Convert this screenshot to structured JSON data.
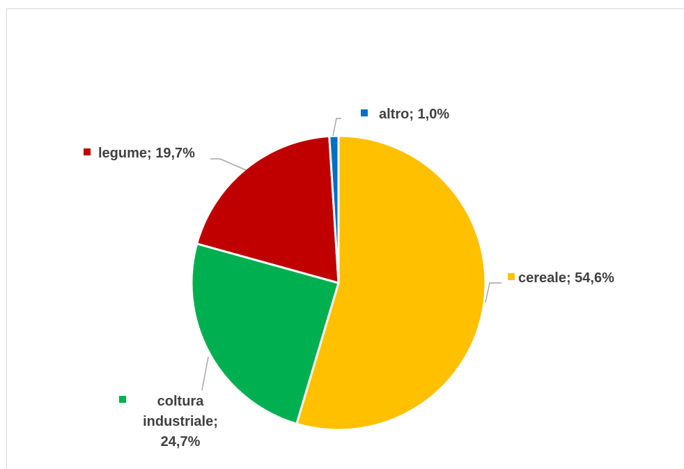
{
  "chart_data": {
    "type": "pie",
    "title": "",
    "legend": "none",
    "slices": [
      {
        "name": "cereale",
        "value": 54.6,
        "label": "cereale; 54,6%",
        "color": "#FFC000"
      },
      {
        "name": "coltura industriale",
        "value": 24.7,
        "label_lines": [
          "coltura",
          "industriale;",
          "24,7%"
        ],
        "color": "#00B050"
      },
      {
        "name": "legume",
        "value": 19.7,
        "label": "legume; 19,7%",
        "color": "#C00000"
      },
      {
        "name": "altro",
        "value": 1.0,
        "label": "altro; 1,0%",
        "color": "#0070C0"
      }
    ]
  }
}
